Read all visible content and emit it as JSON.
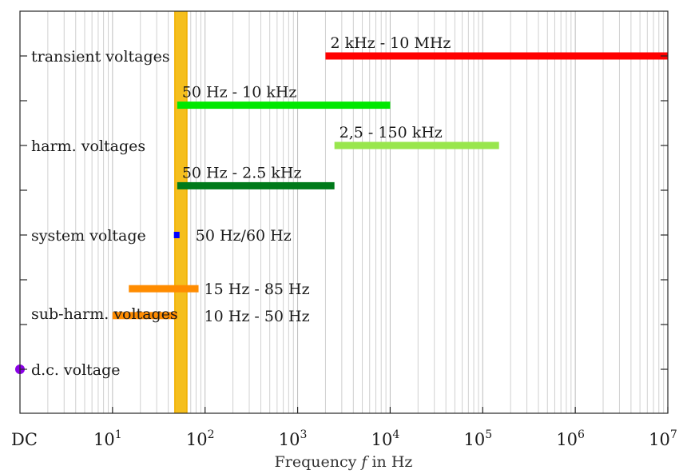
{
  "chart_data": {
    "type": "range",
    "title": "",
    "xlabel": {
      "prefix": "Frequency ",
      "var": "f",
      "suffix": " in Hz"
    },
    "xscale": "log",
    "xlim": [
      1,
      10000000
    ],
    "dc_label": "DC",
    "xticks": [
      {
        "value": 10,
        "base": "10",
        "exp": "1"
      },
      {
        "value": 100,
        "base": "10",
        "exp": "2"
      },
      {
        "value": 1000,
        "base": "10",
        "exp": "3"
      },
      {
        "value": 10000,
        "base": "10",
        "exp": "4"
      },
      {
        "value": 100000,
        "base": "10",
        "exp": "5"
      },
      {
        "value": 1000000,
        "base": "10",
        "exp": "6"
      },
      {
        "value": 10000000,
        "base": "10",
        "exp": "7"
      }
    ],
    "grid": true,
    "categories": [
      {
        "label": "transient voltages",
        "row": 0
      },
      {
        "label": "harm. voltages",
        "row": 2
      },
      {
        "label": "system voltage",
        "row": 4
      },
      {
        "label": "sub-harm. voltages",
        "row": 5.75
      },
      {
        "label": "d.c. voltage",
        "row": 7
      }
    ],
    "y_ticks": [
      0,
      1,
      2,
      3,
      4,
      5,
      6,
      7
    ],
    "reference_band": {
      "from": 50,
      "to": 60,
      "color": "#f5bf1e",
      "edge_color": "#f0b000"
    },
    "ranges": [
      {
        "label": "2 kHz - 10 MHz",
        "from": 2000,
        "to": 10000000,
        "row": 0,
        "color": "#ff0000"
      },
      {
        "label": "50 Hz - 10 kHz",
        "from": 50,
        "to": 10000,
        "row": 1.1,
        "color": "#00e800"
      },
      {
        "label": "2,5 - 150 kHz",
        "from": 2500,
        "to": 150000,
        "row": 2,
        "color": "#99e64d"
      },
      {
        "label": "50 Hz - 2.5 kHz",
        "from": 50,
        "to": 2500,
        "row": 2.9,
        "color": "#007a1a"
      },
      {
        "label": "50 Hz/60 Hz",
        "from": 47,
        "to": 53,
        "row": 4,
        "color": "#0000ff"
      },
      {
        "label": "15 Hz - 85 Hz",
        "from": 15,
        "to": 85,
        "row": 5.2,
        "color": "#ff8c00"
      },
      {
        "label": "10 Hz - 50 Hz",
        "from": 10,
        "to": 50,
        "row": 5.8,
        "color": "#ff8c00"
      }
    ],
    "dc_point": {
      "row": 7,
      "color": "#8a00e6"
    }
  }
}
